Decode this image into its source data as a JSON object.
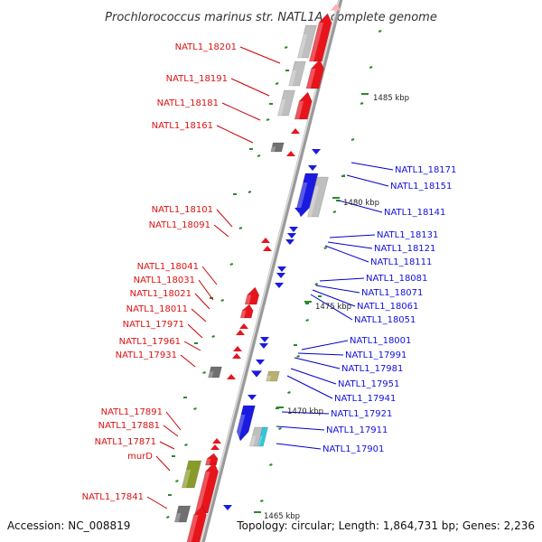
{
  "title": "Prochlorococcus marinus str. NATL1A, complete genome",
  "footer": {
    "accession": "Accession: NC_008819",
    "topology": "Topology: circular; Length: 1,864,731 bp; Genes: 2,236"
  },
  "colors": {
    "forward": "#e8141c",
    "reverse": "#1a1ae0",
    "gray": "#bfbfbf",
    "dark": "#707070",
    "olive": "#8a9a2a",
    "khaki": "#b8b070",
    "cyan": "#30c8d8",
    "tick": "#2a8a2a",
    "backbone": "#9a9a9a"
  },
  "kbp_markers": [
    "1485 kbp",
    "1480 kbp",
    "1475 kbp",
    "1470 kbp",
    "1465 kbp"
  ],
  "left_labels": [
    "NATL1_18201",
    "NATL1_18191",
    "NATL1_18181",
    "NATL1_18161",
    "NATL1_18101",
    "NATL1_18091",
    "NATL1_18041",
    "NATL1_18031",
    "NATL1_18021",
    "NATL1_18011",
    "NATL1_17971",
    "NATL1_17961",
    "NATL1_17931",
    "NATL1_17891",
    "NATL1_17881",
    "NATL1_17871",
    "murD",
    "NATL1_17841"
  ],
  "right_labels": [
    "NATL1_18171",
    "NATL1_18151",
    "NATL1_18141",
    "NATL1_18131",
    "NATL1_18121",
    "NATL1_18111",
    "NATL1_18081",
    "NATL1_18071",
    "NATL1_18061",
    "NATL1_18051",
    "NATL1_18001",
    "NATL1_17991",
    "NATL1_17981",
    "NATL1_17951",
    "NATL1_17941",
    "NATL1_17921",
    "NATL1_17911",
    "NATL1_17901"
  ]
}
